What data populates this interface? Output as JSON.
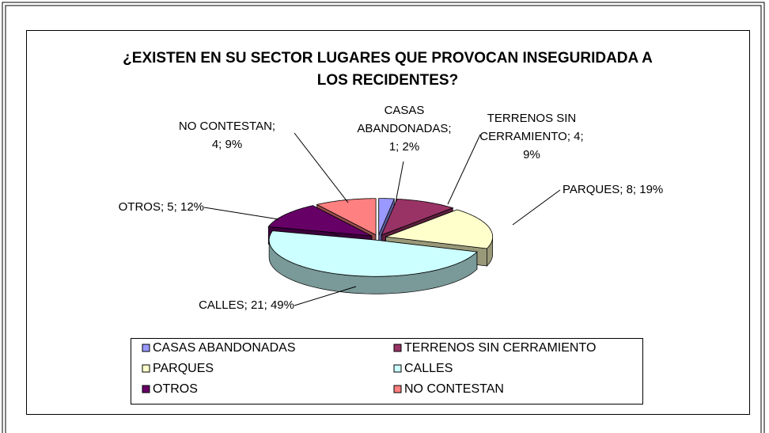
{
  "chart_data": {
    "type": "pie3d",
    "title": "¿EXISTEN EN SU SECTOR LUGARES QUE PROVOCAN INSEGURIDADA A LOS RECIDENTES?",
    "categories": [
      "CASAS ABANDONADAS",
      "TERRENOS SIN CERRAMIENTO",
      "PARQUES",
      "CALLES",
      "OTROS",
      "NO CONTESTAN"
    ],
    "values": [
      1,
      4,
      8,
      21,
      5,
      4
    ],
    "value_labels": [
      "CASAS ABANDONADAS; 1; 2%",
      "TERRENOS SIN CERRAMIENTO; 4; 9%",
      "PARQUES; 8; 19%",
      "CALLES; 21; 49%",
      "OTROS; 5; 12%",
      "NO CONTESTAN; 4; 9%"
    ],
    "colors": [
      "#9999ff",
      "#993366",
      "#ffffcc",
      "#ccffff",
      "#660066",
      "#ff8080"
    ],
    "legend": "bottom"
  }
}
